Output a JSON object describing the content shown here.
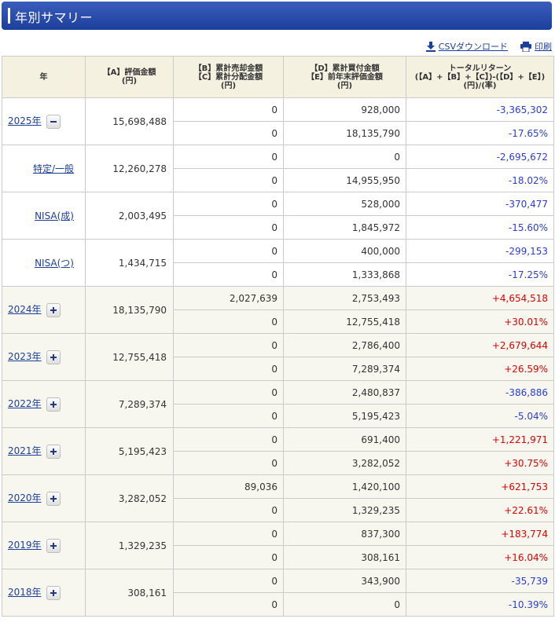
{
  "title": "年別サマリー",
  "toolbar": {
    "csv_label": "CSVダウンロード",
    "print_label": "印刷"
  },
  "colors": {
    "header_bar": "#1d3f9c",
    "positive": "#e00000",
    "negative": "#2b3cd8",
    "header_bg": "#f5f1e1",
    "row_bg": "#f7f7ef"
  },
  "table": {
    "headers": {
      "year": "年",
      "valuation": [
        "【A】評価金額",
        "(円)"
      ],
      "sales": [
        "【B】累計売却金額",
        "【C】累計分配金額",
        "(円)"
      ],
      "purchase": [
        "【D】累計買付金額",
        "【E】前年末評価金額",
        "(円)"
      ],
      "total_return": [
        "トータルリターン",
        "(【A】+【B】+【C】)-(【D】+【E】)",
        "(円)/(率)"
      ]
    },
    "rows": [
      {
        "label": "2025年",
        "kind": "year",
        "expanded": true,
        "valuation": "15,698,488",
        "b": "0",
        "c": "0",
        "d": "928,000",
        "e": "18,135,790",
        "ret": "-3,365,302",
        "rate": "-17.65%",
        "sign": "neg"
      },
      {
        "label": "特定/一般",
        "kind": "account",
        "valuation": "12,260,278",
        "b": "0",
        "c": "0",
        "d": "0",
        "e": "14,955,950",
        "ret": "-2,695,672",
        "rate": "-18.02%",
        "sign": "neg"
      },
      {
        "label": "NISA(成)",
        "kind": "account",
        "valuation": "2,003,495",
        "b": "0",
        "c": "0",
        "d": "528,000",
        "e": "1,845,972",
        "ret": "-370,477",
        "rate": "-15.60%",
        "sign": "neg"
      },
      {
        "label": "NISA(つ)",
        "kind": "account",
        "valuation": "1,434,715",
        "b": "0",
        "c": "0",
        "d": "400,000",
        "e": "1,333,868",
        "ret": "-299,153",
        "rate": "-17.25%",
        "sign": "neg"
      },
      {
        "label": "2024年",
        "kind": "year",
        "expanded": false,
        "valuation": "18,135,790",
        "b": "2,027,639",
        "c": "0",
        "d": "2,753,493",
        "e": "12,755,418",
        "ret": "+4,654,518",
        "rate": "+30.01%",
        "sign": "pos"
      },
      {
        "label": "2023年",
        "kind": "year",
        "expanded": false,
        "valuation": "12,755,418",
        "b": "0",
        "c": "0",
        "d": "2,786,400",
        "e": "7,289,374",
        "ret": "+2,679,644",
        "rate": "+26.59%",
        "sign": "pos"
      },
      {
        "label": "2022年",
        "kind": "year",
        "expanded": false,
        "valuation": "7,289,374",
        "b": "0",
        "c": "0",
        "d": "2,480,837",
        "e": "5,195,423",
        "ret": "-386,886",
        "rate": "-5.04%",
        "sign": "neg"
      },
      {
        "label": "2021年",
        "kind": "year",
        "expanded": false,
        "valuation": "5,195,423",
        "b": "0",
        "c": "0",
        "d": "691,400",
        "e": "3,282,052",
        "ret": "+1,221,971",
        "rate": "+30.75%",
        "sign": "pos"
      },
      {
        "label": "2020年",
        "kind": "year",
        "expanded": false,
        "valuation": "3,282,052",
        "b": "89,036",
        "c": "0",
        "d": "1,420,100",
        "e": "1,329,235",
        "ret": "+621,753",
        "rate": "+22.61%",
        "sign": "pos"
      },
      {
        "label": "2019年",
        "kind": "year",
        "expanded": false,
        "valuation": "1,329,235",
        "b": "0",
        "c": "0",
        "d": "837,300",
        "e": "308,161",
        "ret": "+183,774",
        "rate": "+16.04%",
        "sign": "pos"
      },
      {
        "label": "2018年",
        "kind": "year",
        "expanded": false,
        "valuation": "308,161",
        "b": "0",
        "c": "0",
        "d": "343,900",
        "e": "0",
        "ret": "-35,739",
        "rate": "-10.39%",
        "sign": "neg"
      }
    ]
  }
}
